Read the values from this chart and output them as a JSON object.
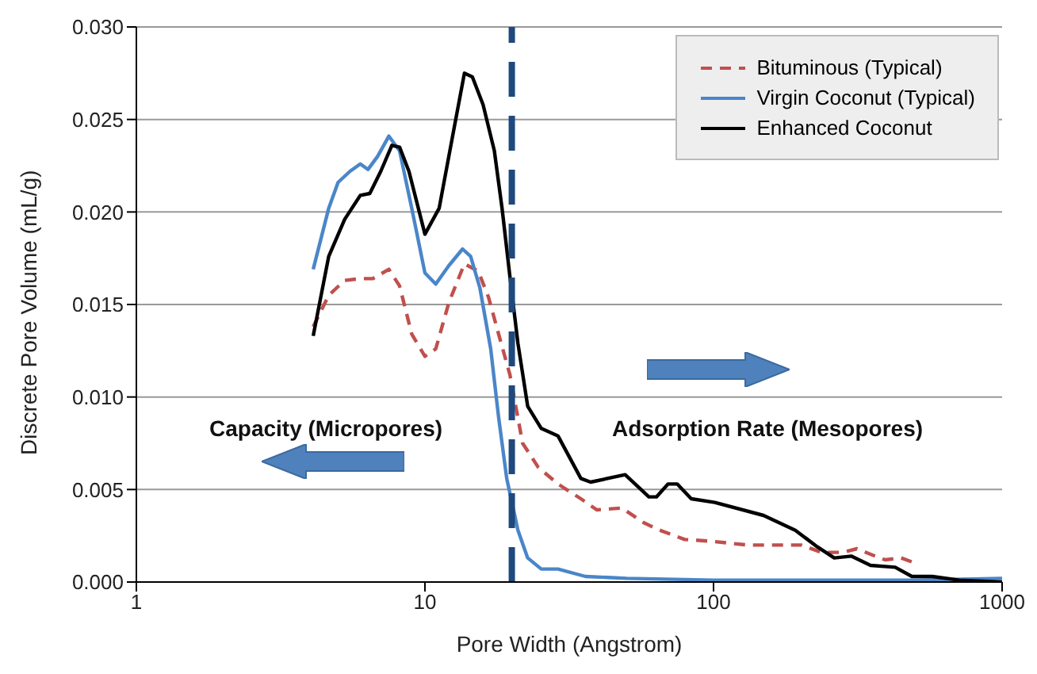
{
  "chart_data": {
    "type": "line",
    "xlabel": "Pore Width (Angstrom)",
    "ylabel": "Discrete Pore Volume (mL/g)",
    "log": "x",
    "xlim": [
      1,
      1000
    ],
    "xticks": [
      1,
      10,
      100,
      1000
    ],
    "ylim": [
      0,
      0.03
    ],
    "yticks": [
      {
        "value": 0,
        "label": "0.000"
      },
      {
        "value": 0.005,
        "label": "0.005"
      },
      {
        "value": 0.01,
        "label": "0.010"
      },
      {
        "value": 0.015,
        "label": "0.015"
      },
      {
        "value": 0.02,
        "label": "0.020"
      },
      {
        "value": 0.025,
        "label": "0.025"
      },
      {
        "value": 0.03,
        "label": "0.030"
      }
    ],
    "grid": "y",
    "legend": "top right",
    "marker": "none",
    "ref_lines": [
      {
        "axis": "x",
        "value": 20,
        "color": "#1f497d",
        "line_style": "dashed"
      }
    ],
    "annotations": [
      "Capacity (Micropores)",
      "Adsorption Rate (Mesopores)"
    ],
    "series": [
      {
        "name": "Bituminous (Typical)",
        "color": "#c0504d",
        "line_style": "dashed",
        "x": [
          4.1,
          4.64,
          5.27,
          5.97,
          6.6,
          7.5,
          8.17,
          9.0,
          10.0,
          10.9,
          12.1,
          13.7,
          15.3,
          16.6,
          18.0,
          19.7,
          21.8,
          24.7,
          28.9,
          34.7,
          39.4,
          48.1,
          57.4,
          65.1,
          79.5,
          98.5,
          131,
          169,
          201,
          237,
          281,
          314,
          350,
          393,
          447,
          505
        ],
        "values": [
          0.0138,
          0.0155,
          0.0163,
          0.0164,
          0.0164,
          0.0169,
          0.016,
          0.0134,
          0.0122,
          0.0126,
          0.0151,
          0.0172,
          0.0168,
          0.0154,
          0.0134,
          0.0112,
          0.0075,
          0.0062,
          0.0053,
          0.0045,
          0.0039,
          0.004,
          0.0032,
          0.0028,
          0.0023,
          0.0022,
          0.002,
          0.002,
          0.002,
          0.0016,
          0.0016,
          0.0018,
          0.0015,
          0.0012,
          0.0013,
          0.001
        ]
      },
      {
        "name": "Virgin Coconut (Typical)",
        "color": "#4a86c8",
        "line_style": "solid",
        "x": [
          4.1,
          4.64,
          5.0,
          5.5,
          5.97,
          6.35,
          6.85,
          7.5,
          8.17,
          9.0,
          10.0,
          10.9,
          12.1,
          13.5,
          14.4,
          15.5,
          16.9,
          18.0,
          19.2,
          21.0,
          22.7,
          25.3,
          28.9,
          36,
          50,
          100,
          200,
          500,
          1000
        ],
        "values": [
          0.0169,
          0.0202,
          0.0216,
          0.0222,
          0.0226,
          0.0223,
          0.023,
          0.0241,
          0.0233,
          0.0202,
          0.0167,
          0.0161,
          0.0171,
          0.018,
          0.0176,
          0.0159,
          0.0126,
          0.0089,
          0.0056,
          0.0028,
          0.0013,
          0.0007,
          0.0007,
          0.0003,
          0.0002,
          0.0001,
          0.0001,
          0.0001,
          0.0002
        ]
      },
      {
        "name": "Enhanced Coconut",
        "color": "#000000",
        "line_style": "solid",
        "x": [
          4.1,
          4.64,
          5.27,
          5.97,
          6.44,
          7.03,
          7.68,
          8.17,
          8.8,
          10.0,
          11.2,
          12.4,
          13.7,
          14.6,
          15.9,
          17.4,
          18.5,
          19.7,
          21.0,
          22.7,
          25.3,
          28.9,
          34.7,
          37.5,
          49.4,
          59.7,
          63.4,
          69.6,
          74.8,
          83.7,
          101,
          149,
          192,
          229,
          262,
          300,
          350,
          426,
          487,
          573,
          710,
          1000
        ],
        "values": [
          0.0133,
          0.0176,
          0.0196,
          0.0209,
          0.021,
          0.0222,
          0.0236,
          0.0235,
          0.0222,
          0.0188,
          0.0202,
          0.0239,
          0.0275,
          0.0273,
          0.0258,
          0.0233,
          0.0202,
          0.0165,
          0.0129,
          0.0095,
          0.0083,
          0.0079,
          0.0056,
          0.0054,
          0.0058,
          0.0046,
          0.0046,
          0.0053,
          0.0053,
          0.0045,
          0.0043,
          0.0036,
          0.0028,
          0.0019,
          0.0013,
          0.0014,
          0.0009,
          0.0008,
          0.0003,
          0.0003,
          0.0001,
          0
        ]
      }
    ]
  }
}
